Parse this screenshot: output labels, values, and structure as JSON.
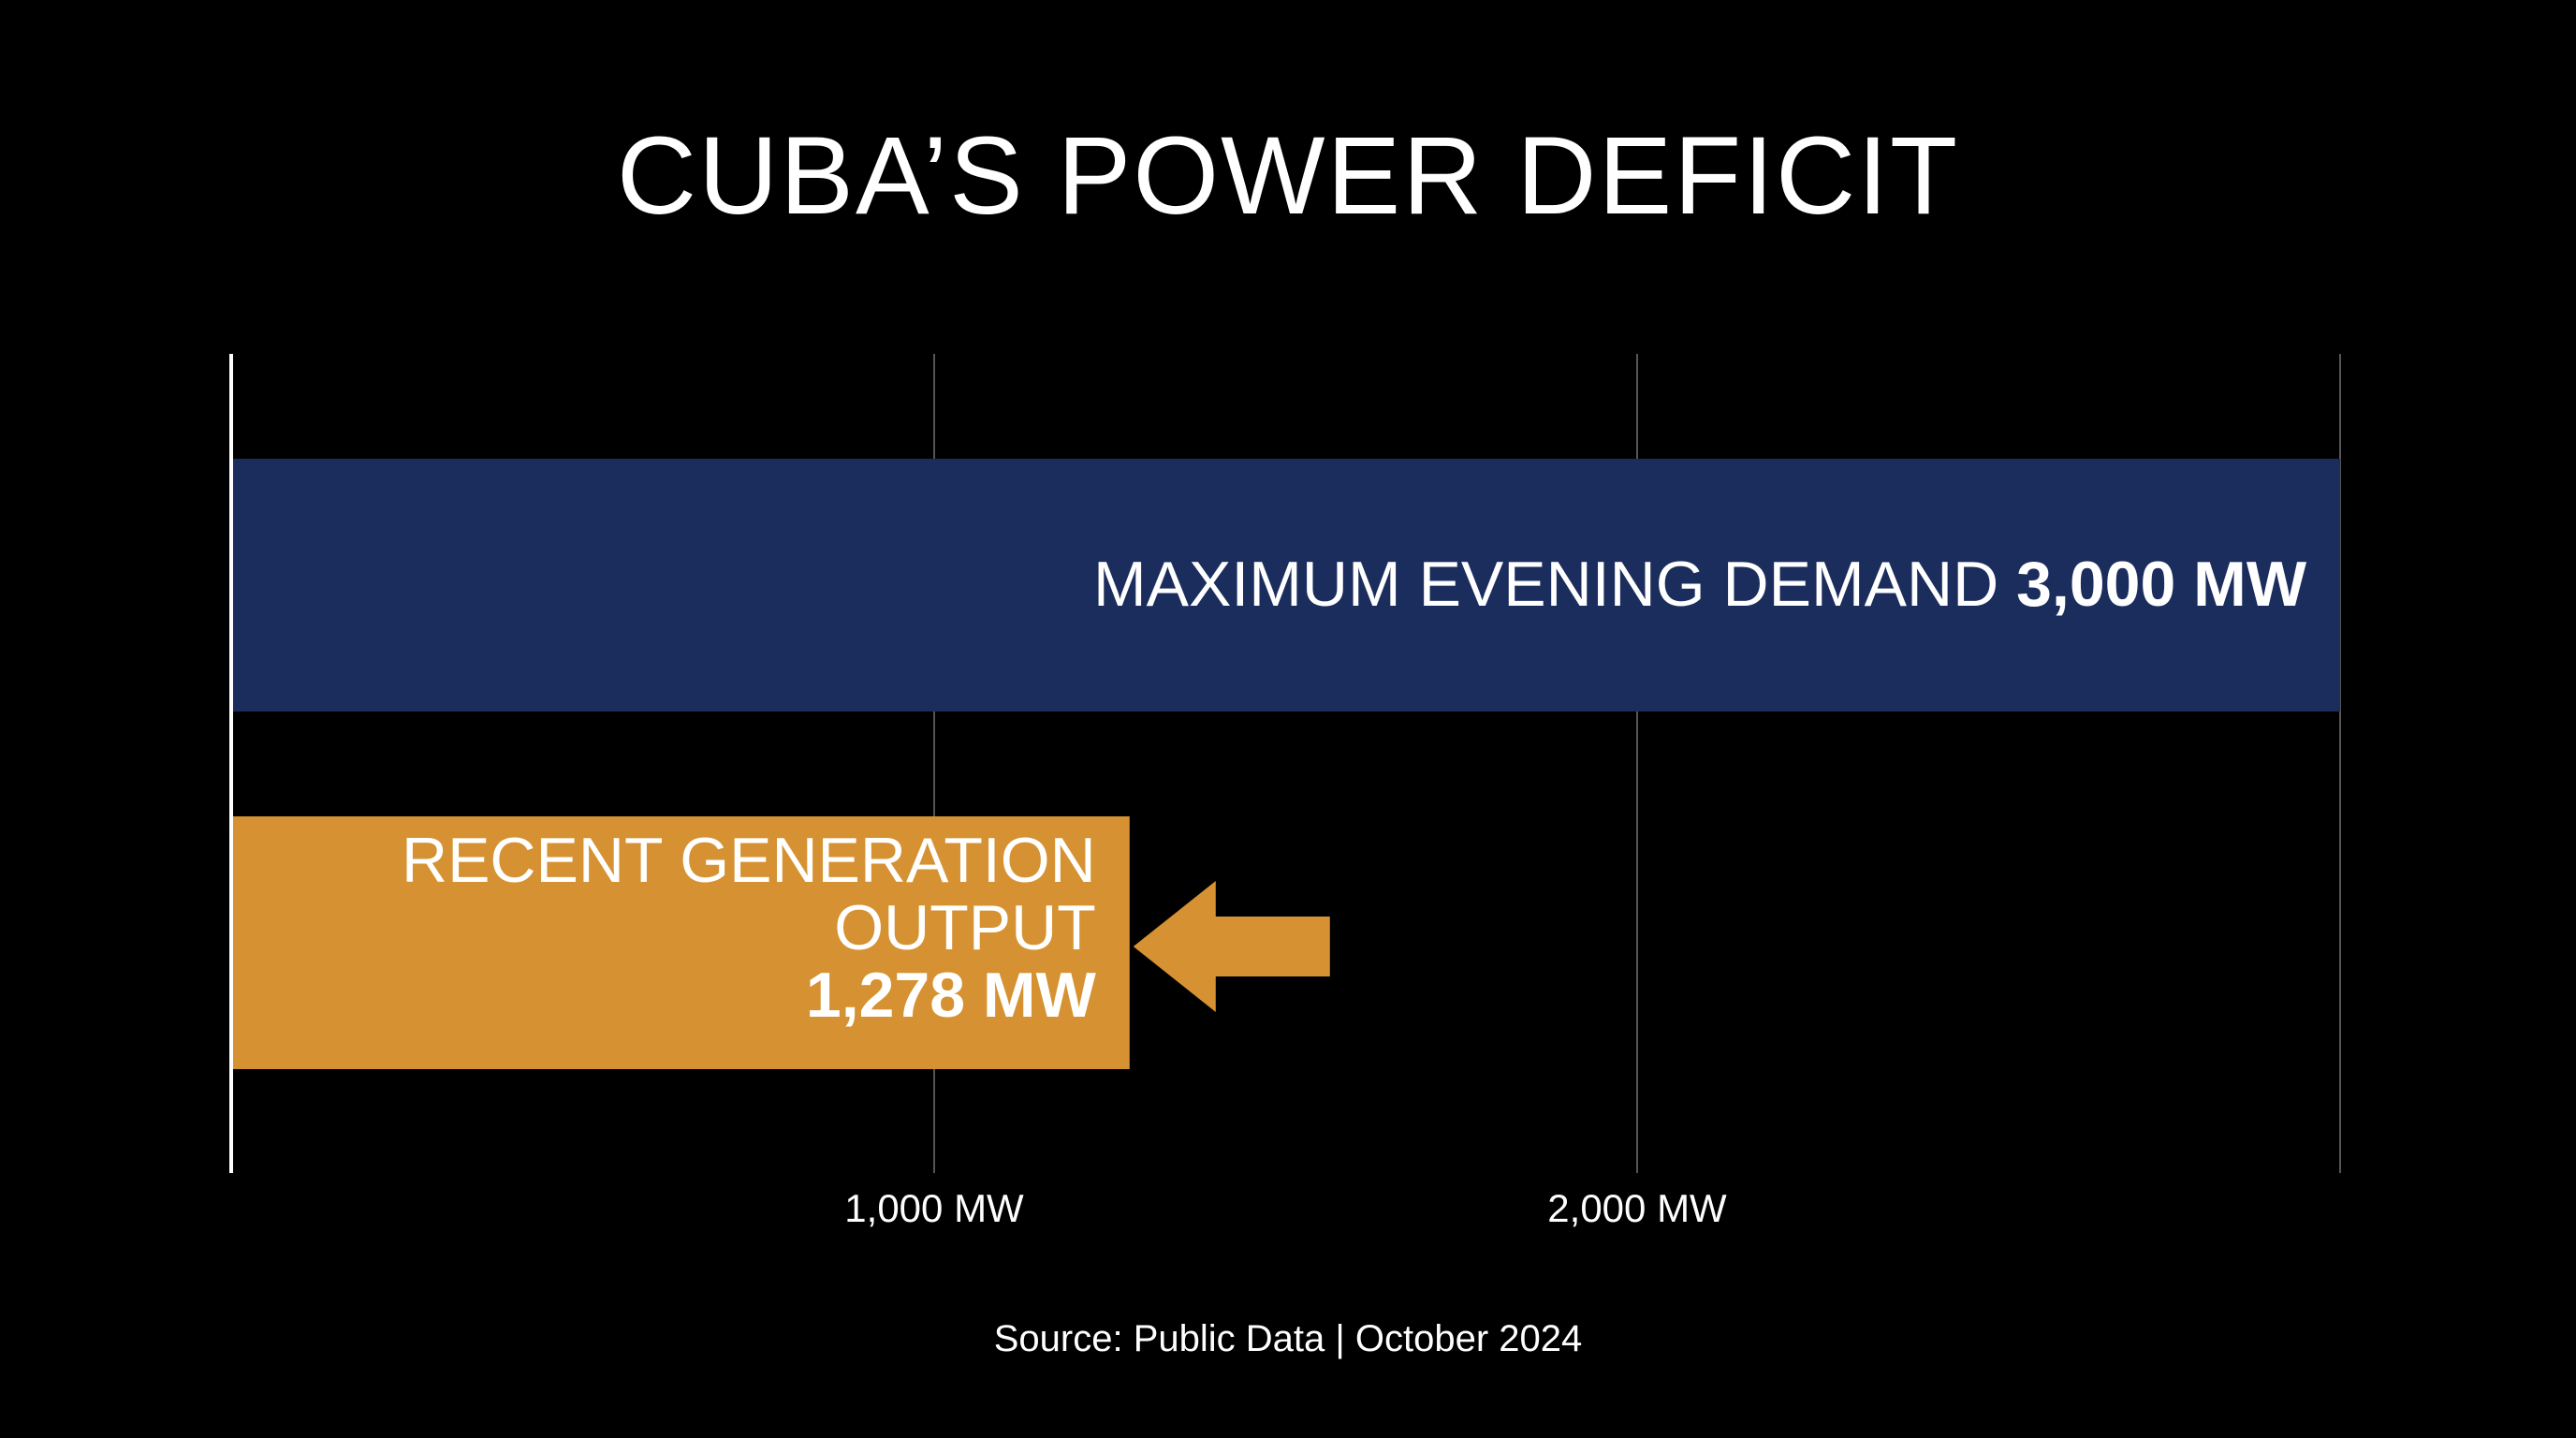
{
  "chart_data": {
    "type": "bar",
    "orientation": "horizontal",
    "title": "CUBA’S POWER DEFICIT",
    "source": "Source: Public Data | October 2024",
    "unit": "MW",
    "xlim": [
      0,
      3000
    ],
    "ticks": [
      {
        "value": 1000,
        "label": "1,000 MW"
      },
      {
        "value": 2000,
        "label": "2,000 MW"
      }
    ],
    "bars": [
      {
        "label_lines": [
          "MAXIMUM EVENING DEMAND"
        ],
        "value": 3000,
        "value_label": "3,000 MW",
        "color": "#1b2d5c"
      },
      {
        "label_lines": [
          "RECENT GENERATION",
          "OUTPUT"
        ],
        "value": 1278,
        "value_label": "1,278 MW",
        "color": "#d69232"
      }
    ],
    "annotations": [
      {
        "type": "arrow",
        "points_to": "RECENT GENERATION OUTPUT",
        "color": "#d69232"
      }
    ],
    "grid": true,
    "legend": "none"
  }
}
